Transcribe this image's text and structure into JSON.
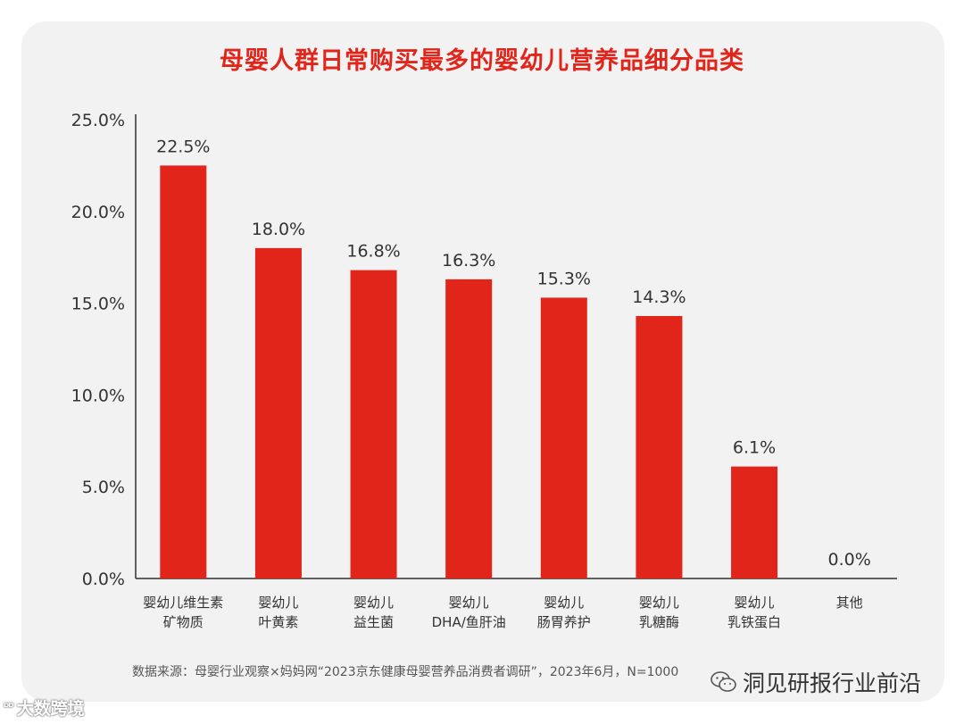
{
  "chart_data": {
    "type": "bar",
    "title": "母婴人群日常购买最多的婴幼儿营养品细分品类",
    "categories": [
      [
        "婴幼儿维生素",
        "矿物质"
      ],
      [
        "婴幼儿",
        "叶黄素"
      ],
      [
        "婴幼儿",
        "益生菌"
      ],
      [
        "婴幼儿",
        "DHA/鱼肝油"
      ],
      [
        "婴幼儿",
        "肠胃养护"
      ],
      [
        "婴幼儿",
        "乳糖酶"
      ],
      [
        "婴幼儿",
        "乳铁蛋白"
      ],
      [
        "其他"
      ]
    ],
    "values": [
      22.5,
      18.0,
      16.8,
      16.3,
      15.3,
      14.3,
      6.1,
      0.0
    ],
    "value_labels": [
      "22.5%",
      "18.0%",
      "16.8%",
      "16.3%",
      "15.3%",
      "14.3%",
      "6.1%",
      "0.0%"
    ],
    "ylim": [
      0,
      25
    ],
    "yticks": [
      "0.0%",
      "5.0%",
      "10.0%",
      "15.0%",
      "20.0%",
      "25.0%"
    ],
    "bar_color": "#e1251b",
    "title_color": "#e1251b",
    "grid": false
  },
  "source": "数据来源：母婴行业观察×妈妈网“2023京东健康母婴营养品消费者调研”，2023年6月，N=1000",
  "watermark_left": {
    "logo_text": "ᴰᴰ",
    "text": "大数跨境"
  },
  "watermark_right": {
    "icon": "wechat-icon",
    "text": "洞见研报行业前沿"
  }
}
